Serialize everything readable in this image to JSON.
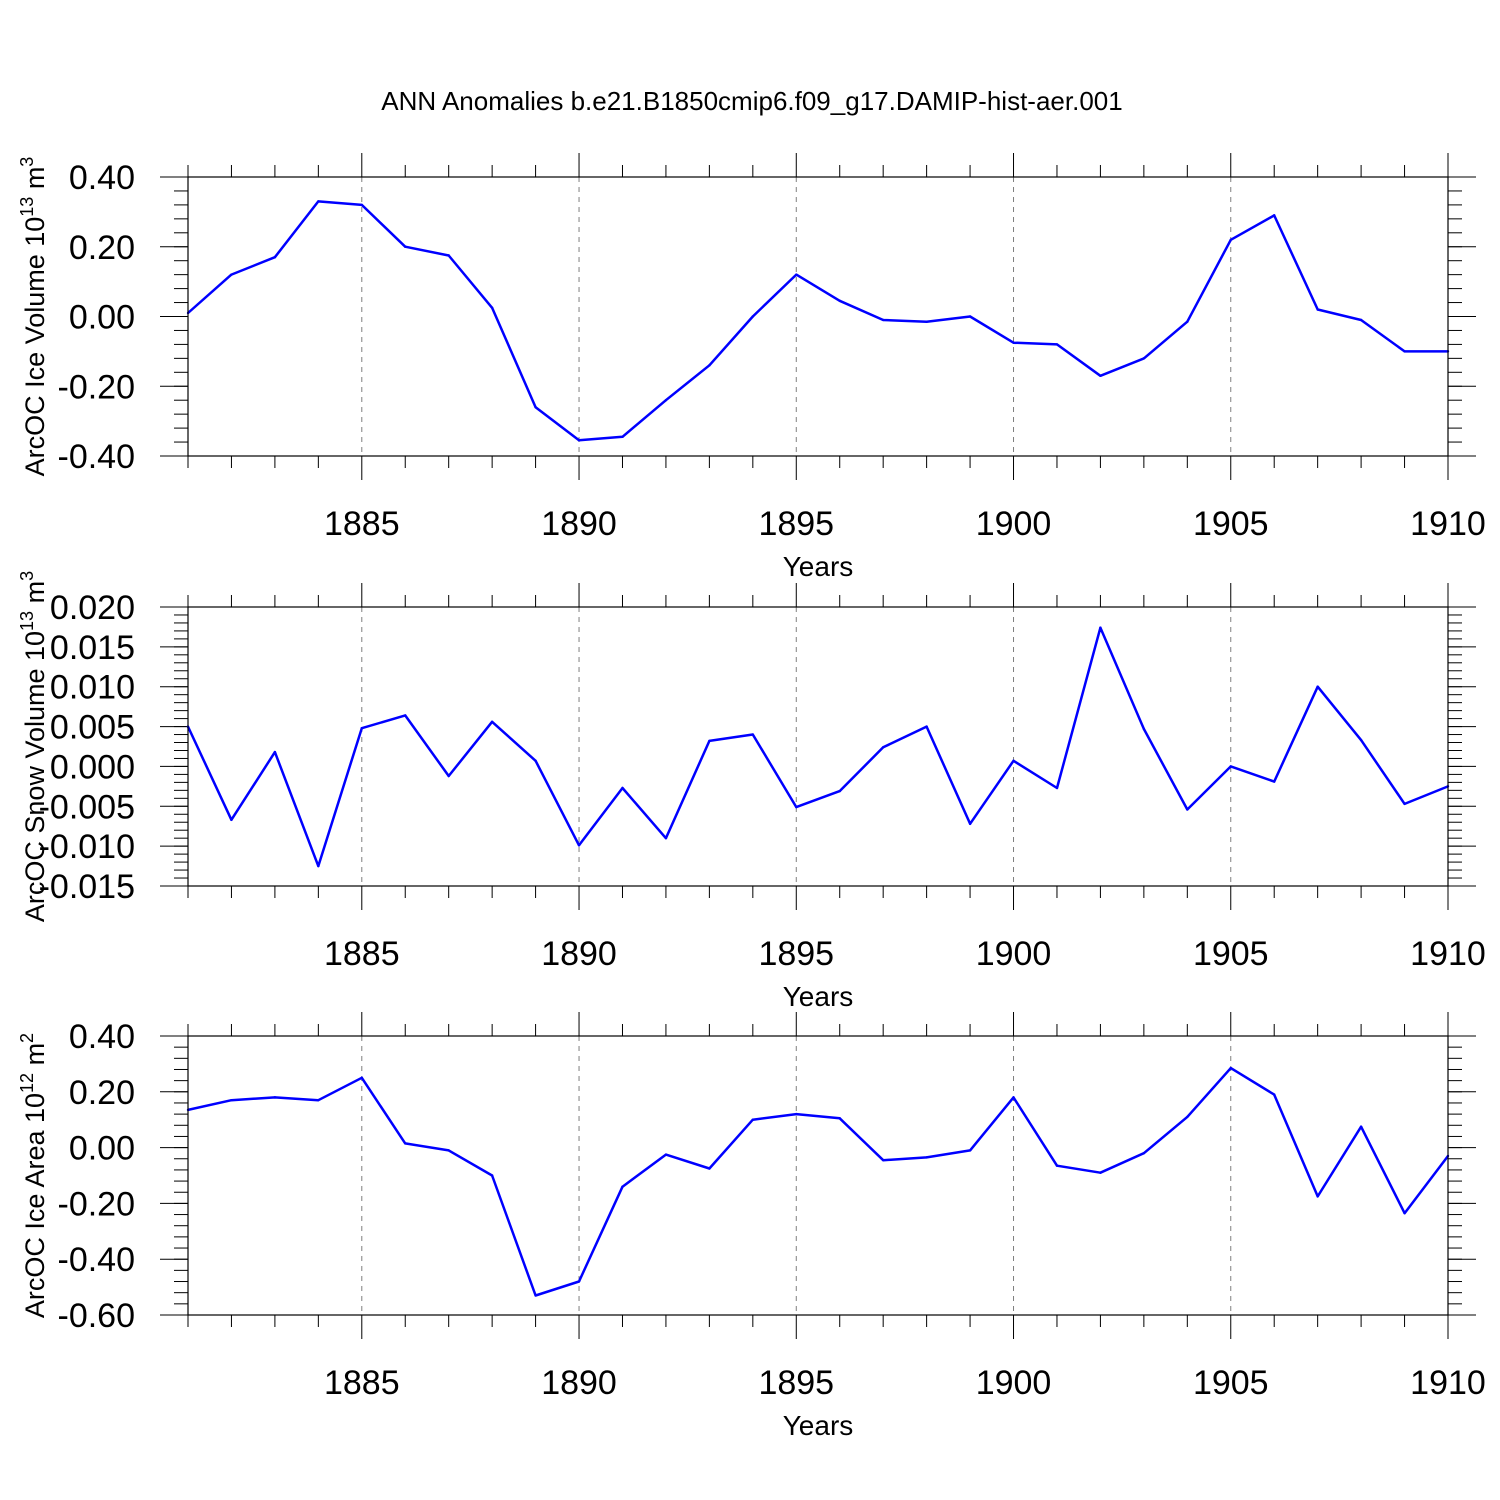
{
  "title": "ANN Anomalies b.e21.B1850cmip6.f09_g17.DAMIP-hist-aer.001",
  "colors": {
    "line": "#0000ff",
    "axis": "#000000",
    "grid": "#7f7f7f",
    "background": "#ffffff"
  },
  "chart_data": [
    {
      "type": "line",
      "ylabel": "ArcOC Ice Volume 10",
      "ylabel_exp": "13",
      "ylabel_unit": "m",
      "ylabel_unit_exp": "3",
      "xlabel": "Years",
      "xlim": [
        1881,
        1910
      ],
      "ylim": [
        -0.4,
        0.4
      ],
      "yticks": [
        -0.4,
        -0.2,
        0.0,
        0.2,
        0.4
      ],
      "ytick_labels": [
        "-0.40",
        "-0.20",
        "0.00",
        "0.20",
        "0.40"
      ],
      "yminor_step": 0.04,
      "xticks": [
        1885,
        1890,
        1895,
        1900,
        1905,
        1910
      ],
      "xtick_labels": [
        "1885",
        "1890",
        "1895",
        "1900",
        "1905",
        "1910"
      ],
      "grid": "vertical-dashed",
      "x": [
        1881,
        1882,
        1883,
        1884,
        1885,
        1886,
        1887,
        1888,
        1889,
        1890,
        1891,
        1892,
        1893,
        1894,
        1895,
        1896,
        1897,
        1898,
        1899,
        1900,
        1901,
        1902,
        1903,
        1904,
        1905,
        1906,
        1907,
        1908,
        1909,
        1910
      ],
      "values": [
        0.01,
        0.12,
        0.17,
        0.33,
        0.32,
        0.2,
        0.175,
        0.025,
        -0.26,
        -0.355,
        -0.345,
        -0.24,
        -0.14,
        0.0,
        0.12,
        0.045,
        -0.01,
        -0.015,
        0.0,
        -0.075,
        -0.08,
        -0.17,
        -0.12,
        -0.015,
        0.22,
        0.29,
        0.02,
        -0.01,
        -0.1,
        -0.1
      ]
    },
    {
      "type": "line",
      "ylabel": "ArcOC Snow Volume 10",
      "ylabel_exp": "13",
      "ylabel_unit": "m",
      "ylabel_unit_exp": "3",
      "xlabel": "Years",
      "xlim": [
        1881,
        1910
      ],
      "ylim": [
        -0.015,
        0.02
      ],
      "yticks": [
        -0.015,
        -0.01,
        -0.005,
        0.0,
        0.005,
        0.01,
        0.015,
        0.02
      ],
      "ytick_labels": [
        "-0.015",
        "-0.010",
        "-0.005",
        "0.000",
        "0.005",
        "0.010",
        "0.015",
        "0.020"
      ],
      "yminor_step": 0.001,
      "xticks": [
        1885,
        1890,
        1895,
        1900,
        1905,
        1910
      ],
      "xtick_labels": [
        "1885",
        "1890",
        "1895",
        "1900",
        "1905",
        "1910"
      ],
      "grid": "vertical-dashed",
      "x": [
        1881,
        1882,
        1883,
        1884,
        1885,
        1886,
        1887,
        1888,
        1889,
        1890,
        1891,
        1892,
        1893,
        1894,
        1895,
        1896,
        1897,
        1898,
        1899,
        1900,
        1901,
        1902,
        1903,
        1904,
        1905,
        1906,
        1907,
        1908,
        1909,
        1910
      ],
      "values": [
        0.005,
        -0.0067,
        0.0018,
        -0.0125,
        0.0048,
        0.0064,
        -0.0012,
        0.0056,
        0.0007,
        -0.0099,
        -0.0027,
        -0.009,
        0.0032,
        0.004,
        -0.0051,
        -0.0031,
        0.0024,
        0.005,
        -0.0072,
        0.0007,
        -0.0027,
        0.0174,
        0.0047,
        -0.0054,
        0.0,
        -0.0019,
        0.01,
        0.0033,
        -0.0047,
        -0.0025
      ]
    },
    {
      "type": "line",
      "ylabel": "ArcOC Ice Area 10",
      "ylabel_exp": "12",
      "ylabel_unit": "m",
      "ylabel_unit_exp": "2",
      "xlabel": "Years",
      "xlim": [
        1881,
        1910
      ],
      "ylim": [
        -0.6,
        0.4
      ],
      "yticks": [
        -0.6,
        -0.4,
        -0.2,
        0.0,
        0.2,
        0.4
      ],
      "ytick_labels": [
        "-0.60",
        "-0.40",
        "-0.20",
        "0.00",
        "0.20",
        "0.40"
      ],
      "yminor_step": 0.04,
      "xticks": [
        1885,
        1890,
        1895,
        1900,
        1905,
        1910
      ],
      "xtick_labels": [
        "1885",
        "1890",
        "1895",
        "1900",
        "1905",
        "1910"
      ],
      "grid": "vertical-dashed",
      "x": [
        1881,
        1882,
        1883,
        1884,
        1885,
        1886,
        1887,
        1888,
        1889,
        1890,
        1891,
        1892,
        1893,
        1894,
        1895,
        1896,
        1897,
        1898,
        1899,
        1900,
        1901,
        1902,
        1903,
        1904,
        1905,
        1906,
        1907,
        1908,
        1909,
        1910
      ],
      "values": [
        0.135,
        0.17,
        0.18,
        0.17,
        0.25,
        0.015,
        -0.01,
        -0.1,
        -0.53,
        -0.48,
        -0.14,
        -0.025,
        -0.075,
        0.1,
        0.12,
        0.105,
        -0.045,
        -0.035,
        -0.01,
        0.18,
        -0.065,
        -0.09,
        -0.02,
        0.11,
        0.285,
        0.19,
        -0.175,
        0.075,
        -0.235,
        -0.03
      ]
    }
  ]
}
